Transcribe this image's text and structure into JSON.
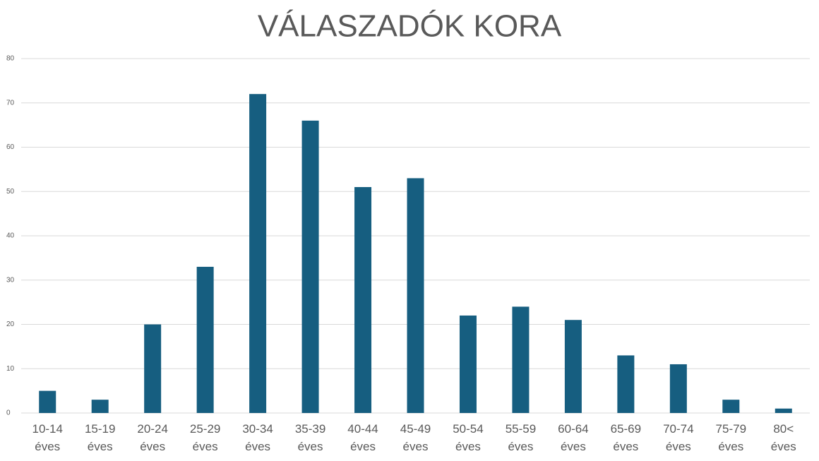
{
  "chart_data": {
    "type": "bar",
    "title": "VÁLASZADÓK KORA",
    "categories": [
      "10-14 éves",
      "15-19 éves",
      "20-24 éves",
      "25-29 éves",
      "30-34 éves",
      "35-39 éves",
      "40-44 éves",
      "45-49 éves",
      "50-54 éves",
      "55-59 éves",
      "60-64 éves",
      "65-69 éves",
      "70-74 éves",
      "75-79 éves",
      "80< éves"
    ],
    "values": [
      5,
      3,
      20,
      33,
      72,
      66,
      51,
      53,
      22,
      24,
      21,
      13,
      11,
      3,
      1
    ],
    "color": "#165e80",
    "ylim": [
      0,
      80
    ],
    "yticks": [
      0,
      10,
      20,
      30,
      40,
      50,
      60,
      70,
      80
    ],
    "grid": true
  }
}
